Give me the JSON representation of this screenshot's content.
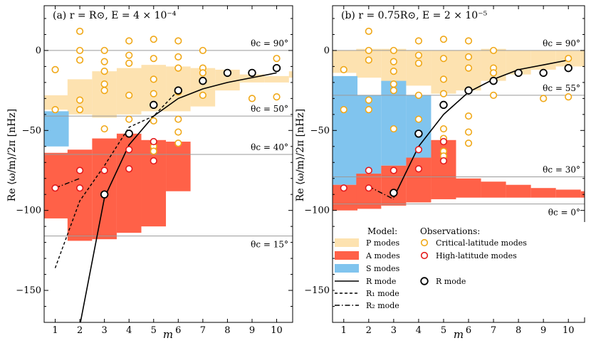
{
  "chart_data": [
    {
      "type": "scatter",
      "title": "(a) r = R⊙, E = 4 × 10⁻⁴",
      "xlabel": "m",
      "ylabel": "Re ⟨ω/m⟩/2π  [nHz]",
      "xlim": [
        0.55,
        10.65
      ],
      "ylim": [
        -170,
        28
      ],
      "xticks": [
        1,
        2,
        3,
        4,
        5,
        6,
        7,
        8,
        9,
        10
      ],
      "yticks": [
        0,
        -50,
        -100,
        -150
      ],
      "hlines": [
        {
          "label": "θc = 90°",
          "value": 0
        },
        {
          "label": "θc = 50°",
          "value": -41
        },
        {
          "label": "θc = 40°",
          "value": -65
        },
        {
          "label": "θc = 15°",
          "value": -116
        }
      ],
      "p_modes": [
        [
          0.55,
          -28,
          -37
        ],
        [
          1.5,
          -18,
          -40
        ],
        [
          2.5,
          -13,
          -42
        ],
        [
          3.5,
          -11,
          -40
        ],
        [
          4.5,
          -9,
          -38
        ],
        [
          5.5,
          -10,
          -38
        ],
        [
          6.5,
          -11,
          -35
        ],
        [
          7.5,
          -12,
          -25
        ],
        [
          8.5,
          -15,
          -20
        ],
        [
          9.5,
          -16,
          -20
        ],
        [
          10.5,
          -13,
          -17
        ]
      ],
      "a_modes": [
        [
          0.55,
          -64,
          -105
        ],
        [
          1.5,
          -62,
          -119
        ],
        [
          2.5,
          -55,
          -118
        ],
        [
          3.5,
          -52,
          -114
        ],
        [
          4.5,
          -56,
          -110
        ],
        [
          5.5,
          -57,
          -88
        ]
      ],
      "s_modes": [
        [
          0.55,
          -38,
          -60
        ]
      ],
      "r_mode": [
        [
          2,
          -172
        ],
        [
          3,
          -92
        ],
        [
          4,
          -59
        ],
        [
          5,
          -41
        ],
        [
          6,
          -30
        ],
        [
          7,
          -24
        ],
        [
          8,
          -20
        ],
        [
          9,
          -17
        ],
        [
          10,
          -14
        ]
      ],
      "r1_mode": [
        [
          1,
          -136
        ],
        [
          2,
          -94
        ],
        [
          3,
          -72
        ],
        [
          4,
          -48
        ],
        [
          5,
          -41
        ],
        [
          6,
          -25
        ]
      ],
      "r2_mode": [
        [
          1,
          -86
        ],
        [
          2,
          -80
        ]
      ],
      "critical_latitude_obs": [
        [
          1,
          -12
        ],
        [
          1,
          -37
        ],
        [
          2,
          12
        ],
        [
          2,
          0
        ],
        [
          2,
          -6
        ],
        [
          2,
          -31
        ],
        [
          2,
          -37
        ],
        [
          3,
          0
        ],
        [
          3,
          -7
        ],
        [
          3,
          -13
        ],
        [
          3,
          -21
        ],
        [
          3,
          -25
        ],
        [
          3,
          -49
        ],
        [
          4,
          6
        ],
        [
          4,
          -3
        ],
        [
          4,
          -8
        ],
        [
          4,
          -28
        ],
        [
          4,
          -43
        ],
        [
          4,
          -52
        ],
        [
          5,
          7
        ],
        [
          5,
          -5
        ],
        [
          5,
          -18
        ],
        [
          5,
          -27
        ],
        [
          5,
          -44
        ],
        [
          5,
          -60
        ],
        [
          5,
          -63
        ],
        [
          6,
          6
        ],
        [
          6,
          -4
        ],
        [
          6,
          -11
        ],
        [
          6,
          -26
        ],
        [
          6,
          -43
        ],
        [
          6,
          -51
        ],
        [
          6,
          -58
        ],
        [
          7,
          0
        ],
        [
          7,
          -11
        ],
        [
          7,
          -14
        ],
        [
          7,
          -28
        ],
        [
          9,
          -30
        ],
        [
          10,
          -5
        ],
        [
          10,
          -29
        ]
      ],
      "high_latitude_obs": [
        [
          1,
          -86
        ],
        [
          2,
          -75
        ],
        [
          2,
          -86
        ],
        [
          3,
          -75
        ],
        [
          4,
          -62
        ],
        [
          4,
          -74
        ],
        [
          5,
          -57
        ],
        [
          5,
          -69
        ]
      ],
      "r_mode_obs": [
        [
          3,
          -90
        ],
        [
          4,
          -52
        ],
        [
          5,
          -34
        ],
        [
          6,
          -25
        ],
        [
          7,
          -19
        ],
        [
          8,
          -14
        ],
        [
          9,
          -14
        ],
        [
          10,
          -11
        ]
      ]
    },
    {
      "type": "scatter",
      "title": "(b) r = 0.75R⊙, E = 2 × 10⁻⁵",
      "xlabel": "m",
      "ylabel": "Re ⟨ω/m⟩/2π  [nHz]",
      "xlim": [
        0.55,
        10.65
      ],
      "ylim": [
        -170,
        28
      ],
      "xticks": [
        1,
        2,
        3,
        4,
        5,
        6,
        7,
        8,
        9,
        10
      ],
      "yticks": [
        0,
        -50,
        -100,
        -150
      ],
      "hlines": [
        {
          "label": "θc = 90°",
          "value": 0
        },
        {
          "label": "θc = 55°",
          "value": -28
        },
        {
          "label": "θc = 30°",
          "value": -79
        },
        {
          "label": "θc = 0°",
          "value": -96
        }
      ],
      "p_modes": [
        [
          0.55,
          0,
          -14
        ],
        [
          1.5,
          1,
          -17
        ],
        [
          2.5,
          1,
          -20
        ],
        [
          3.5,
          0,
          -22
        ],
        [
          4.5,
          0,
          -27
        ],
        [
          5.5,
          0,
          -25
        ],
        [
          6.5,
          1,
          -19
        ],
        [
          7.5,
          0,
          -15
        ],
        [
          8.5,
          0,
          -12
        ],
        [
          9.5,
          0,
          -10
        ],
        [
          10.5,
          0,
          -10
        ]
      ],
      "a_modes": [
        [
          0.55,
          -84,
          -100
        ],
        [
          1.5,
          -77,
          -99
        ],
        [
          2.5,
          -72,
          -97
        ],
        [
          3.5,
          -67,
          -95
        ],
        [
          4.5,
          -56,
          -93
        ],
        [
          5.5,
          -80,
          -92
        ],
        [
          6.5,
          -82,
          -92
        ],
        [
          7.5,
          -84,
          -92
        ],
        [
          8.5,
          -86,
          -92
        ],
        [
          9.5,
          -87,
          -92
        ],
        [
          10.5,
          -88,
          -92
        ]
      ],
      "s_modes": [
        [
          0.55,
          -16,
          -84
        ],
        [
          1.5,
          -28,
          -77
        ],
        [
          2.5,
          -19,
          -72
        ],
        [
          3.5,
          -28,
          -67
        ]
      ],
      "r_mode": [
        [
          3,
          -92
        ],
        [
          4,
          -60
        ],
        [
          5,
          -40
        ],
        [
          6,
          -26
        ],
        [
          7,
          -18
        ],
        [
          8,
          -12
        ],
        [
          9,
          -9
        ],
        [
          10,
          -6
        ]
      ],
      "r1_mode": [],
      "r2_mode": [
        [
          2,
          -85
        ],
        [
          3,
          -93
        ]
      ],
      "critical_latitude_obs": [
        [
          1,
          -12
        ],
        [
          1,
          -37
        ],
        [
          2,
          12
        ],
        [
          2,
          0
        ],
        [
          2,
          -6
        ],
        [
          2,
          -31
        ],
        [
          2,
          -37
        ],
        [
          3,
          0
        ],
        [
          3,
          -7
        ],
        [
          3,
          -13
        ],
        [
          3,
          -21
        ],
        [
          3,
          -25
        ],
        [
          3,
          -49
        ],
        [
          4,
          6
        ],
        [
          4,
          -3
        ],
        [
          4,
          -8
        ],
        [
          4,
          -28
        ],
        [
          4,
          -43
        ],
        [
          4,
          -52
        ],
        [
          5,
          7
        ],
        [
          5,
          -5
        ],
        [
          5,
          -18
        ],
        [
          5,
          -27
        ],
        [
          5,
          -49
        ],
        [
          5,
          -55
        ],
        [
          5,
          -63
        ],
        [
          5,
          -66
        ],
        [
          6,
          6
        ],
        [
          6,
          -4
        ],
        [
          6,
          -11
        ],
        [
          6,
          -41
        ],
        [
          6,
          -51
        ],
        [
          6,
          -58
        ],
        [
          7,
          0
        ],
        [
          7,
          -11
        ],
        [
          7,
          -14
        ],
        [
          7,
          -28
        ],
        [
          9,
          -30
        ],
        [
          10,
          -5
        ],
        [
          10,
          -29
        ]
      ],
      "high_latitude_obs": [
        [
          1,
          -86
        ],
        [
          2,
          -75
        ],
        [
          2,
          -86
        ],
        [
          3,
          -75
        ],
        [
          4,
          -62
        ],
        [
          4,
          -74
        ],
        [
          5,
          -57
        ],
        [
          5,
          -69
        ]
      ],
      "r_mode_obs": [
        [
          3,
          -89
        ],
        [
          4,
          -52
        ],
        [
          5,
          -34
        ],
        [
          6,
          -25
        ],
        [
          7,
          -19
        ],
        [
          8,
          -14
        ],
        [
          9,
          -14
        ],
        [
          10,
          -11
        ]
      ]
    }
  ],
  "legend": {
    "model_header": "Model:",
    "obs_header": "Observations:",
    "items": {
      "p": "P modes",
      "a": "A modes",
      "s": "S modes",
      "r": "R mode",
      "r1": "R₁ mode",
      "r2": "R₂ mode",
      "crit": "Critical-latitude modes",
      "high": "High-latitude modes",
      "robs": "R mode"
    }
  },
  "colors": {
    "p_fill": "#fde2b0",
    "a_fill": "#ff6148",
    "s_fill": "#80c4ee",
    "crit": "#f0a818",
    "high": "#e41a1c",
    "robs": "#000000",
    "hline": "#9a9a9a"
  }
}
